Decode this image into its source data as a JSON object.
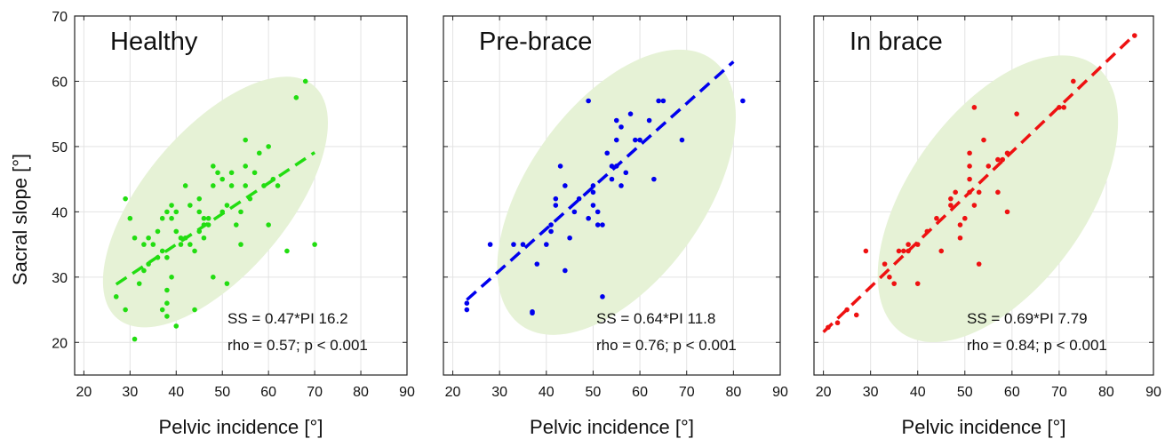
{
  "figure": {
    "ylabel": "Sacral slope [°]",
    "xlabel": "Pelvic incidence [°]"
  },
  "chart_data": [
    {
      "type": "scatter",
      "title": "Healthy",
      "xlabel": "Pelvic incidence [°]",
      "ylabel": "Sacral slope [°]",
      "xlim": [
        18,
        90
      ],
      "ylim": [
        15,
        70
      ],
      "xticks": [
        20,
        30,
        40,
        50,
        60,
        70,
        80,
        90
      ],
      "yticks": [
        20,
        30,
        40,
        50,
        60,
        70
      ],
      "grid": true,
      "point_color": "#22dd11",
      "ellipse": {
        "cx": 48.5,
        "cy": 41.5,
        "rx": 33,
        "ry": 11,
        "angle_deg": 40,
        "color": "#e6f2d6"
      },
      "fit": {
        "slope": 0.47,
        "intercept": 16.2,
        "x_range": [
          27,
          70
        ]
      },
      "annotations": [
        "SS = 0.47*PI 16.2",
        "rho = 0.57; p < 0.001"
      ],
      "points": [
        [
          27,
          27
        ],
        [
          29,
          25
        ],
        [
          29,
          42
        ],
        [
          30,
          39
        ],
        [
          31,
          20.5
        ],
        [
          31,
          36
        ],
        [
          32,
          29
        ],
        [
          33,
          35
        ],
        [
          33,
          31
        ],
        [
          34,
          32
        ],
        [
          34,
          36
        ],
        [
          35,
          35
        ],
        [
          36,
          33
        ],
        [
          36,
          37
        ],
        [
          37,
          25
        ],
        [
          37,
          39
        ],
        [
          37,
          34
        ],
        [
          38,
          24
        ],
        [
          38,
          40
        ],
        [
          38,
          33
        ],
        [
          38,
          26
        ],
        [
          38,
          28
        ],
        [
          39,
          39
        ],
        [
          39,
          30
        ],
        [
          39,
          41
        ],
        [
          40,
          22.5
        ],
        [
          40,
          40
        ],
        [
          40,
          37
        ],
        [
          41,
          36
        ],
        [
          41,
          35
        ],
        [
          42,
          44
        ],
        [
          42,
          36
        ],
        [
          43,
          35
        ],
        [
          43,
          41
        ],
        [
          44,
          34
        ],
        [
          44,
          25
        ],
        [
          45,
          42
        ],
        [
          45,
          37
        ],
        [
          45,
          40
        ],
        [
          46,
          38
        ],
        [
          46,
          39
        ],
        [
          46,
          36
        ],
        [
          47,
          38
        ],
        [
          47,
          39
        ],
        [
          48,
          30
        ],
        [
          48,
          44
        ],
        [
          48,
          47
        ],
        [
          49,
          46
        ],
        [
          50,
          40
        ],
        [
          50,
          45
        ],
        [
          51,
          41
        ],
        [
          51,
          29
        ],
        [
          52,
          44
        ],
        [
          52,
          46
        ],
        [
          53,
          38
        ],
        [
          54,
          40
        ],
        [
          54,
          35
        ],
        [
          55,
          47
        ],
        [
          55,
          44
        ],
        [
          55,
          51
        ],
        [
          56,
          42
        ],
        [
          57,
          46
        ],
        [
          58,
          49
        ],
        [
          59,
          44
        ],
        [
          60,
          50
        ],
        [
          60,
          38
        ],
        [
          61,
          45
        ],
        [
          62,
          44
        ],
        [
          64,
          34
        ],
        [
          66,
          57.5
        ],
        [
          68,
          60
        ],
        [
          70,
          35
        ]
      ]
    },
    {
      "type": "scatter",
      "title": "Pre-brace",
      "xlabel": "Pelvic incidence [°]",
      "ylabel": "",
      "xlim": [
        18,
        90
      ],
      "ylim": [
        15,
        70
      ],
      "xticks": [
        20,
        30,
        40,
        50,
        60,
        70,
        80,
        90
      ],
      "yticks": [
        20,
        30,
        40,
        50,
        60,
        70
      ],
      "grid": true,
      "point_color": "#0000ee",
      "ellipse": {
        "cx": 55,
        "cy": 43,
        "rx": 35,
        "ry": 13.5,
        "angle_deg": 45,
        "color": "#e6f2d6"
      },
      "fit": {
        "slope": 0.64,
        "intercept": 11.8,
        "x_range": [
          23,
          80
        ]
      },
      "annotations": [
        "SS = 0.64*PI 11.8",
        "rho = 0.76; p < 0.001"
      ],
      "points": [
        [
          23,
          25
        ],
        [
          23,
          26
        ],
        [
          28,
          35
        ],
        [
          33,
          35
        ],
        [
          35,
          35
        ],
        [
          37,
          24.7
        ],
        [
          37,
          24.5
        ],
        [
          38,
          32
        ],
        [
          40,
          35
        ],
        [
          41,
          37
        ],
        [
          41,
          38
        ],
        [
          42,
          42
        ],
        [
          42,
          41
        ],
        [
          43,
          47
        ],
        [
          44,
          44
        ],
        [
          44,
          31
        ],
        [
          45,
          36
        ],
        [
          46,
          40
        ],
        [
          47,
          42
        ],
        [
          49,
          39
        ],
        [
          49,
          57
        ],
        [
          50,
          44
        ],
        [
          50,
          43
        ],
        [
          50,
          41
        ],
        [
          51,
          40
        ],
        [
          51,
          38
        ],
        [
          52,
          38
        ],
        [
          52,
          27
        ],
        [
          53,
          49
        ],
        [
          54,
          47
        ],
        [
          54,
          45
        ],
        [
          55,
          47
        ],
        [
          55,
          51
        ],
        [
          55,
          54
        ],
        [
          56,
          53
        ],
        [
          56,
          44
        ],
        [
          57,
          46
        ],
        [
          58,
          55
        ],
        [
          59,
          51
        ],
        [
          60,
          51
        ],
        [
          62,
          54
        ],
        [
          63,
          45
        ],
        [
          64,
          57
        ],
        [
          65,
          57
        ],
        [
          69,
          51
        ],
        [
          82,
          57
        ]
      ]
    },
    {
      "type": "scatter",
      "title": "In brace",
      "xlabel": "Pelvic incidence [°]",
      "ylabel": "",
      "xlim": [
        18,
        90
      ],
      "ylim": [
        15,
        70
      ],
      "xticks": [
        20,
        30,
        40,
        50,
        60,
        70,
        80,
        90
      ],
      "yticks": [
        20,
        30,
        40,
        50,
        60,
        70
      ],
      "grid": true,
      "point_color": "#ee1111",
      "ellipse": {
        "cx": 57,
        "cy": 42,
        "rx": 35,
        "ry": 13.5,
        "angle_deg": 45,
        "color": "#e6f2d6"
      },
      "fit": {
        "slope": 0.69,
        "intercept": 7.79,
        "x_range": [
          20,
          86
        ]
      },
      "annotations": [
        "SS = 0.69*PI 7.79",
        "rho = 0.84; p < 0.001"
      ],
      "points": [
        [
          21,
          22.3
        ],
        [
          23,
          23
        ],
        [
          25,
          25
        ],
        [
          27,
          24.2
        ],
        [
          29,
          34
        ],
        [
          33,
          32
        ],
        [
          34,
          30
        ],
        [
          35,
          29
        ],
        [
          36,
          34
        ],
        [
          37,
          34
        ],
        [
          38,
          34
        ],
        [
          38,
          35
        ],
        [
          40,
          29
        ],
        [
          40,
          35
        ],
        [
          42,
          37
        ],
        [
          44,
          39
        ],
        [
          45,
          34
        ],
        [
          47,
          41
        ],
        [
          47,
          42
        ],
        [
          48,
          43
        ],
        [
          49,
          36
        ],
        [
          49,
          38
        ],
        [
          50,
          39
        ],
        [
          51,
          45
        ],
        [
          51,
          43
        ],
        [
          51,
          47
        ],
        [
          51,
          49
        ],
        [
          52,
          56
        ],
        [
          52,
          41
        ],
        [
          53,
          43
        ],
        [
          53,
          32
        ],
        [
          54,
          51
        ],
        [
          55,
          47
        ],
        [
          57,
          48
        ],
        [
          57,
          43
        ],
        [
          58,
          48
        ],
        [
          59,
          40
        ],
        [
          59,
          49
        ],
        [
          61,
          55
        ],
        [
          70,
          56
        ],
        [
          71,
          56
        ],
        [
          73,
          60
        ],
        [
          86,
          67
        ]
      ]
    }
  ]
}
